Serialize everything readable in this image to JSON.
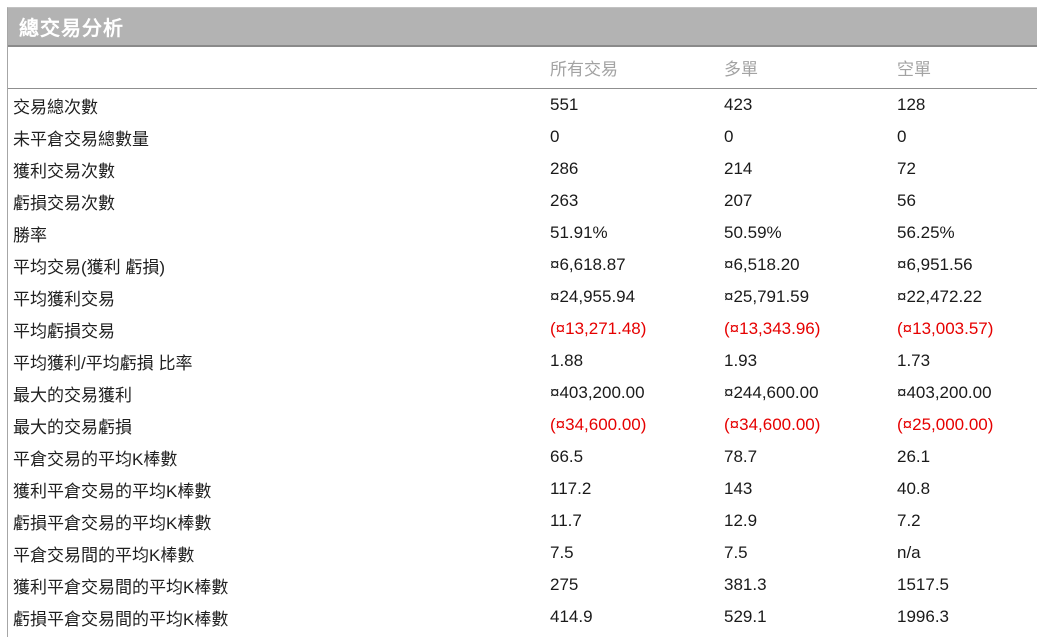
{
  "panel": {
    "title": "總交易分析"
  },
  "colors": {
    "title_bar_bg": "#b3b3b3",
    "title_text": "#ffffff",
    "column_header_text": "#a3a3a3",
    "body_text": "#1a1a1a",
    "negative_text": "#e60000",
    "divider": "#8f8f8f"
  },
  "table": {
    "columns": [
      "所有交易",
      "多單",
      "空單"
    ],
    "rows": [
      {
        "label": "交易總次數",
        "values": [
          "551",
          "423",
          "128"
        ],
        "negative": false
      },
      {
        "label": "未平倉交易總數量",
        "values": [
          "0",
          "0",
          "0"
        ],
        "negative": false
      },
      {
        "label": "獲利交易次數",
        "values": [
          "286",
          "214",
          "72"
        ],
        "negative": false
      },
      {
        "label": "虧損交易次數",
        "values": [
          "263",
          "207",
          "56"
        ],
        "negative": false
      },
      {
        "label": "勝率",
        "values": [
          "51.91%",
          "50.59%",
          "56.25%"
        ],
        "negative": false
      },
      {
        "label": "平均交易(獲利 虧損)",
        "values": [
          "¤6,618.87",
          "¤6,518.20",
          "¤6,951.56"
        ],
        "negative": false
      },
      {
        "label": "平均獲利交易",
        "values": [
          "¤24,955.94",
          "¤25,791.59",
          "¤22,472.22"
        ],
        "negative": false
      },
      {
        "label": "平均虧損交易",
        "values": [
          "(¤13,271.48)",
          "(¤13,343.96)",
          "(¤13,003.57)"
        ],
        "negative": true
      },
      {
        "label": "平均獲利/平均虧損 比率",
        "values": [
          "1.88",
          "1.93",
          "1.73"
        ],
        "negative": false
      },
      {
        "label": "最大的交易獲利",
        "values": [
          "¤403,200.00",
          "¤244,600.00",
          "¤403,200.00"
        ],
        "negative": false
      },
      {
        "label": "最大的交易虧損",
        "values": [
          "(¤34,600.00)",
          "(¤34,600.00)",
          "(¤25,000.00)"
        ],
        "negative": true
      },
      {
        "label": "平倉交易的平均K棒數",
        "values": [
          "66.5",
          "78.7",
          "26.1"
        ],
        "negative": false
      },
      {
        "label": "獲利平倉交易的平均K棒數",
        "values": [
          "117.2",
          "143",
          "40.8"
        ],
        "negative": false
      },
      {
        "label": "虧損平倉交易的平均K棒數",
        "values": [
          "11.7",
          "12.9",
          "7.2"
        ],
        "negative": false
      },
      {
        "label": "平倉交易間的平均K棒數",
        "values": [
          "7.5",
          "7.5",
          "n/a"
        ],
        "negative": false
      },
      {
        "label": "獲利平倉交易間的平均K棒數",
        "values": [
          "275",
          "381.3",
          "1517.5"
        ],
        "negative": false
      },
      {
        "label": "虧損平倉交易間的平均K棒數",
        "values": [
          "414.9",
          "529.1",
          "1996.3"
        ],
        "negative": false
      }
    ]
  }
}
